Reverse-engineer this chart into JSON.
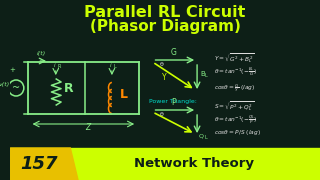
{
  "title_line1": "Parallel RL Circuit",
  "title_line2": "(Phasor Diagram)",
  "title_color": "#CCFF00",
  "bg_color": "#0d1f17",
  "circuit_color": "#88EE88",
  "yellow_color": "#CCFF00",
  "cyan_color": "#00DDCC",
  "white_color": "#DDDDDD",
  "orange_color": "#FF8800",
  "footer_num": "157",
  "footer_text": "Network Theory",
  "footer_yellow": "#CCFF00",
  "footer_gold": "#E8C000"
}
